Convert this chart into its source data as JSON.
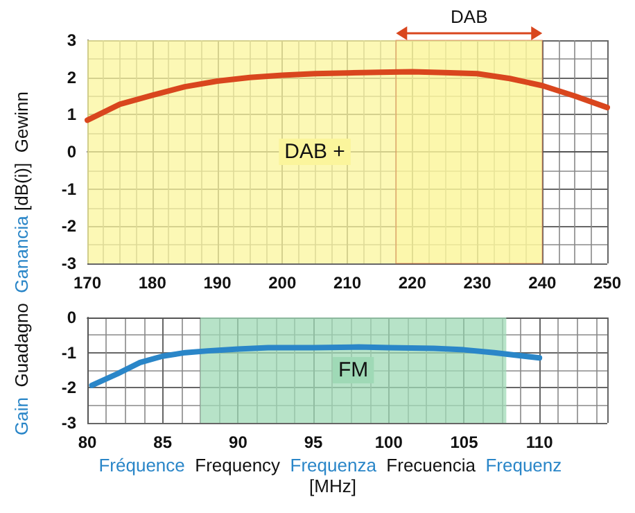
{
  "chart_data": [
    {
      "type": "line",
      "ylabel": "Gain  Guadagno  Ganancia [dB(i)]  Gewinn",
      "x": [
        170,
        175,
        180,
        185,
        190,
        195,
        200,
        205,
        210,
        215,
        220,
        225,
        230,
        235,
        240,
        245,
        250
      ],
      "series": [
        {
          "color": "#d9461e",
          "values": [
            0.85,
            1.28,
            1.52,
            1.75,
            1.9,
            2.0,
            2.06,
            2.1,
            2.12,
            2.14,
            2.15,
            2.13,
            2.1,
            1.97,
            1.78,
            1.5,
            1.19
          ]
        }
      ],
      "xlim": [
        170,
        250
      ],
      "xticks": [
        170,
        180,
        190,
        200,
        210,
        220,
        230,
        240,
        250
      ],
      "ylim": [
        -3,
        3
      ],
      "yticks": [
        -3,
        -2,
        -1,
        0,
        1,
        2,
        3
      ],
      "bands": [
        {
          "axis": "x",
          "from": 170,
          "to": 240,
          "label": "DAB +",
          "color": "#fbf59c"
        },
        {
          "axis": "x",
          "from": 217.5,
          "to": 240,
          "label": "DAB"
        }
      ],
      "grid": true,
      "marker": "none",
      "line_style": "solid"
    },
    {
      "type": "line",
      "xlabel": "Fréquence  Frequency  Frequenza  Frecuencia  Frequenz [MHz]",
      "x": [
        80.3,
        82,
        83.5,
        85,
        86.5,
        88,
        90,
        92,
        95,
        98,
        100,
        103,
        105,
        107,
        110
      ],
      "series": [
        {
          "color": "#2a86c8",
          "values": [
            -1.93,
            -1.6,
            -1.28,
            -1.1,
            -1.0,
            -0.95,
            -0.9,
            -0.86,
            -0.86,
            -0.84,
            -0.86,
            -0.88,
            -0.92,
            -1.0,
            -1.15
          ]
        }
      ],
      "xlim": [
        80,
        114.5
      ],
      "xticks": [
        80,
        85,
        90,
        95,
        100,
        105,
        110
      ],
      "ylim": [
        -3,
        0
      ],
      "yticks": [
        -3,
        -2,
        -1,
        0
      ],
      "bands": [
        {
          "axis": "x",
          "from": 87.5,
          "to": 107.8,
          "label": "FM",
          "color": "#9fd9b6"
        }
      ],
      "grid": true,
      "marker": "none",
      "line_style": "solid"
    }
  ]
}
